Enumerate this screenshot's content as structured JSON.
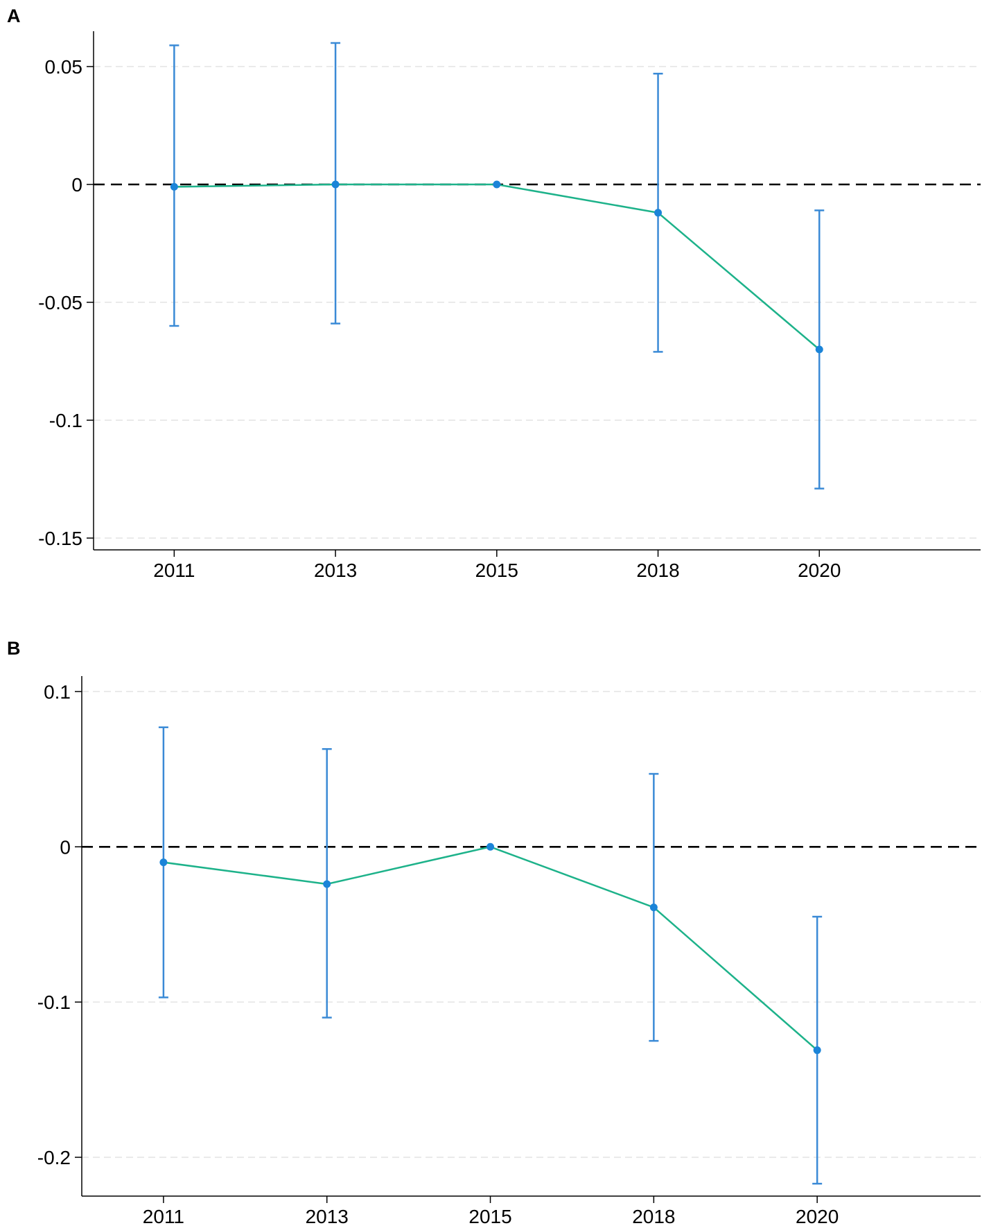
{
  "figure": {
    "colors": {
      "line": "#1db28a",
      "marker": "#1b84d8",
      "ci": "#3a8ad6",
      "zero_line": "#000000",
      "axis": "#000000",
      "grid": "#e4e4e4"
    }
  },
  "chart_data": [
    {
      "panel": "A",
      "type": "line",
      "title": "",
      "xlabel": "",
      "ylabel": "",
      "categories": [
        "2011",
        "2013",
        "2015",
        "2018",
        "2020"
      ],
      "x_positions": [
        2011,
        2013,
        2015,
        2017,
        2019
      ],
      "xlim": [
        2010,
        2021
      ],
      "values": [
        -0.001,
        0.0,
        0.0,
        -0.012,
        -0.07
      ],
      "ci_low": [
        -0.06,
        -0.059,
        0.0,
        -0.071,
        -0.129
      ],
      "ci_high": [
        0.059,
        0.06,
        0.0,
        0.047,
        -0.011
      ],
      "ylim": [
        -0.155,
        0.065
      ],
      "yticks": [
        0.05,
        0,
        -0.05,
        -0.1,
        -0.15
      ],
      "ytick_labels": [
        "0.05",
        "0",
        "-0.05",
        "-0.1",
        "-0.15"
      ],
      "grid": true,
      "reference_line": 0
    },
    {
      "panel": "B",
      "type": "line",
      "title": "",
      "xlabel": "",
      "ylabel": "",
      "categories": [
        "2011",
        "2013",
        "2015",
        "2018",
        "2020"
      ],
      "x_positions": [
        2011,
        2013,
        2015,
        2017,
        2019
      ],
      "xlim": [
        2010,
        2021
      ],
      "values": [
        -0.01,
        -0.024,
        0.0,
        -0.039,
        -0.131
      ],
      "ci_low": [
        -0.097,
        -0.11,
        0.0,
        -0.125,
        -0.217
      ],
      "ci_high": [
        0.077,
        0.063,
        0.0,
        0.047,
        -0.045
      ],
      "ylim": [
        -0.225,
        0.11
      ],
      "yticks": [
        0.1,
        0,
        -0.1,
        -0.2
      ],
      "ytick_labels": [
        "0.1",
        "0",
        "-0.1",
        "-0.2"
      ],
      "grid": true,
      "reference_line": 0
    }
  ]
}
